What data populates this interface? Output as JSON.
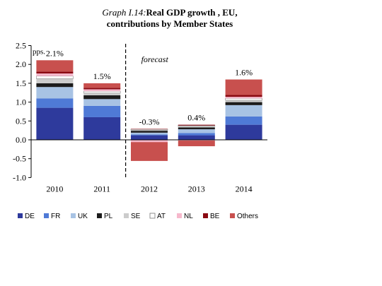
{
  "title": {
    "prefix": "Graph I.14:",
    "line1": "Real GDP growth , EU,",
    "line2": "contributions by Member States"
  },
  "chart_data": {
    "type": "bar",
    "stacked": true,
    "y_unit_label": "pps.",
    "ylim": [
      -1.0,
      2.5
    ],
    "yticks": [
      "2.5",
      "2.0",
      "1.5",
      "1.0",
      "0.5",
      "0.0",
      "-0.5",
      "-1.0"
    ],
    "categories": [
      "2010",
      "2011",
      "2012",
      "2013",
      "2014"
    ],
    "totals_labels": [
      "2.1%",
      "1.5%",
      "-0.3%",
      "0.4%",
      "1.6%"
    ],
    "totals": [
      2.1,
      1.5,
      -0.3,
      0.4,
      1.6
    ],
    "forecast_label": "forecast",
    "forecast_from": "2012",
    "legend_position": "bottom",
    "series": [
      {
        "name": "DE",
        "color": "#2e3a9c",
        "values": [
          0.85,
          0.6,
          0.12,
          0.12,
          0.4
        ]
      },
      {
        "name": "FR",
        "color": "#4f7ad6",
        "values": [
          0.25,
          0.3,
          0.02,
          0.06,
          0.22
        ]
      },
      {
        "name": "UK",
        "color": "#a8c3e4",
        "values": [
          0.3,
          0.18,
          0.05,
          0.1,
          0.3
        ]
      },
      {
        "name": "PL",
        "color": "#1c1c1c",
        "values": [
          0.1,
          0.1,
          0.05,
          0.05,
          0.08
        ]
      },
      {
        "name": "SE",
        "color": "#cccccc",
        "values": [
          0.12,
          0.06,
          0.02,
          0.03,
          0.05
        ]
      },
      {
        "name": "AT",
        "color": "#ffffff",
        "values": [
          0.07,
          0.05,
          0.02,
          0.02,
          0.05
        ]
      },
      {
        "name": "NL",
        "color": "#f6b8cc",
        "values": [
          0.07,
          0.05,
          -0.06,
          -0.02,
          0.04
        ]
      },
      {
        "name": "BE",
        "color": "#8b0a12",
        "values": [
          0.05,
          0.04,
          0.01,
          0.02,
          0.05
        ]
      },
      {
        "name": "Others",
        "color": "#c8504e",
        "values": [
          0.3,
          0.12,
          -0.5,
          -0.15,
          0.41
        ]
      }
    ]
  }
}
